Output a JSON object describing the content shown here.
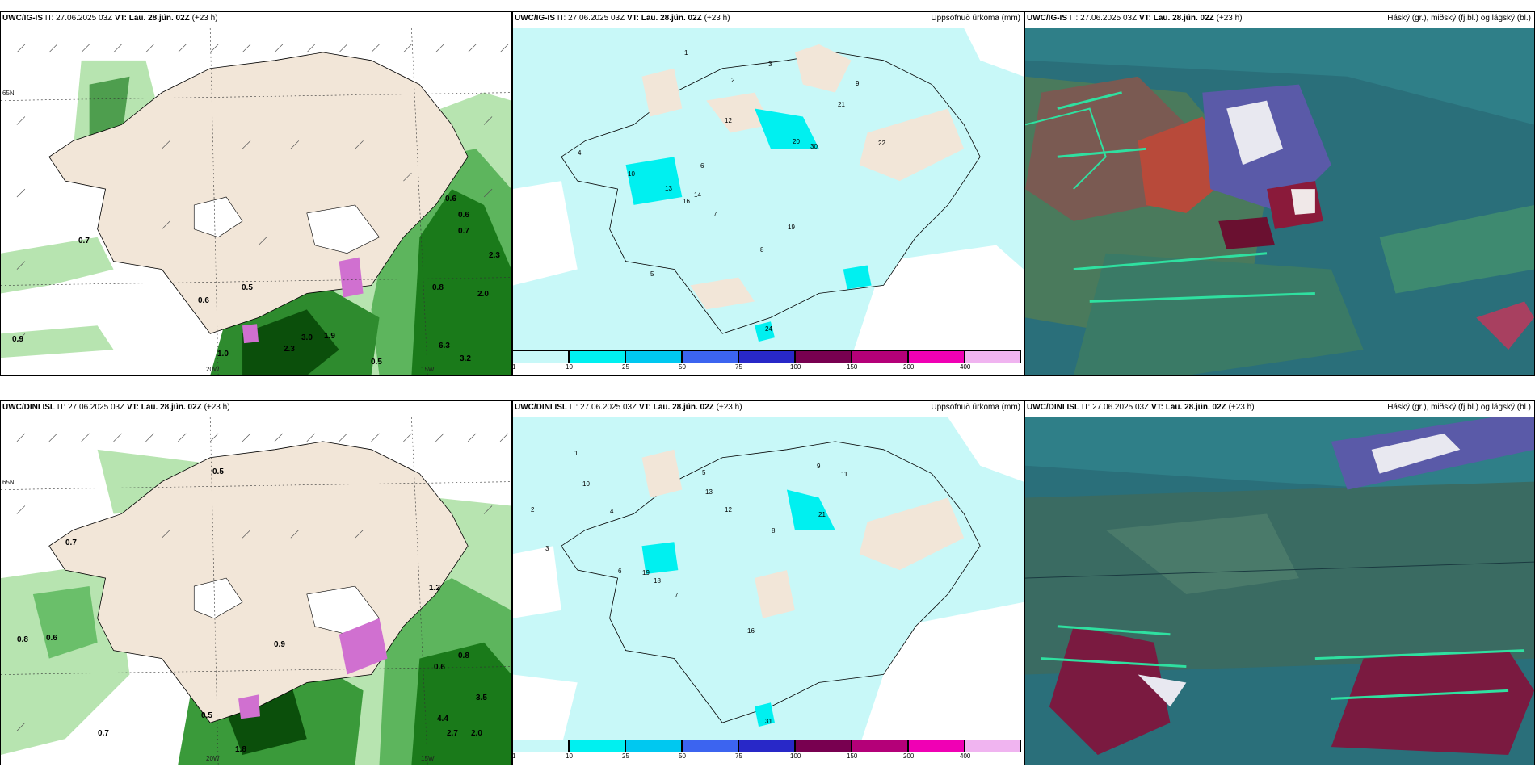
{
  "panels": [
    {
      "id": "r1c1",
      "model": "UWC/IG-IS",
      "it_label": "IT:",
      "it_value": "27.06.2025 03Z",
      "vt_label": "VT:",
      "vt_value": "Lau. 28.jún. 02Z",
      "lead": "(+23 h)",
      "right": ""
    },
    {
      "id": "r1c2",
      "model": "UWC/IG-IS",
      "it_label": "IT:",
      "it_value": "27.06.2025 03Z",
      "vt_label": "VT:",
      "vt_value": "Lau. 28.jún. 02Z",
      "lead": "(+23 h)",
      "right": "Uppsöfnuð úrkoma (mm)"
    },
    {
      "id": "r1c3",
      "model": "UWC/IG-IS",
      "it_label": "IT:",
      "it_value": "27.06.2025 03Z",
      "vt_label": "VT:",
      "vt_value": "Lau. 28.jún. 02Z",
      "lead": "(+23 h)",
      "right": "Háský (gr.), miðský (fj.bl.) og lágský (bl.)"
    },
    {
      "id": "r2c1",
      "model": "UWC/DINI ISL",
      "it_label": "IT:",
      "it_value": "27.06.2025 03Z",
      "vt_label": "VT:",
      "vt_value": "Lau. 28.jún. 02Z",
      "lead": "(+23 h)",
      "right": ""
    },
    {
      "id": "r2c2",
      "model": "UWC/DINI ISL",
      "it_label": "IT:",
      "it_value": "27.06.2025 03Z",
      "vt_label": "VT:",
      "vt_value": "Lau. 28.jún. 02Z",
      "lead": "(+23 h)",
      "right": "Uppsöfnuð úrkoma (mm)"
    },
    {
      "id": "r2c3",
      "model": "UWC/DINI ISL",
      "it_label": "IT:",
      "it_value": "27.06.2025 03Z",
      "vt_label": "VT:",
      "vt_value": "Lau. 28.jún. 02Z",
      "lead": "(+23 h)",
      "right": "Háský (gr.), miðský (fj.bl.) og lágský (bl.)"
    }
  ],
  "colorbar": {
    "ticks": [
      "1",
      "10",
      "25",
      "50",
      "75",
      "100",
      "150",
      "200",
      "400"
    ],
    "colors": [
      "#c8f8f8",
      "#00f0f0",
      "#00c8f0",
      "#3c64f0",
      "#2828c8",
      "#780050",
      "#b40078",
      "#f000b4",
      "#f0b4f0"
    ]
  },
  "axis": {
    "lat_label": "65N",
    "lon_label_a": "20W",
    "lon_label_b": "15W"
  },
  "wind_labels_r1": [
    "0.7",
    "0.5",
    "0.6",
    "0.9",
    "1.9",
    "2.3",
    "3.0",
    "1.0",
    "0.5",
    "6.3",
    "3.2",
    "0.8",
    "2.0",
    "2.3",
    "0.6",
    "0.7",
    "0.6"
  ],
  "wind_labels_r2": [
    "0.5",
    "0.7",
    "0.8",
    "0.6",
    "0.9",
    "1.2",
    "3.5",
    "4.4",
    "2.7",
    "2.0",
    "1.8",
    "0.7",
    "0.5",
    "0.8",
    "0.6"
  ],
  "precip_labels_r1": [
    "1",
    "2",
    "3",
    "4",
    "5",
    "6",
    "7",
    "8",
    "9",
    "10",
    "12",
    "13",
    "14",
    "16",
    "19",
    "20",
    "21",
    "22",
    "24",
    "30"
  ],
  "precip_labels_r2": [
    "1",
    "2",
    "3",
    "4",
    "5",
    "6",
    "7",
    "8",
    "9",
    "10",
    "11",
    "12",
    "13",
    "16",
    "18",
    "19",
    "21",
    "31"
  ]
}
